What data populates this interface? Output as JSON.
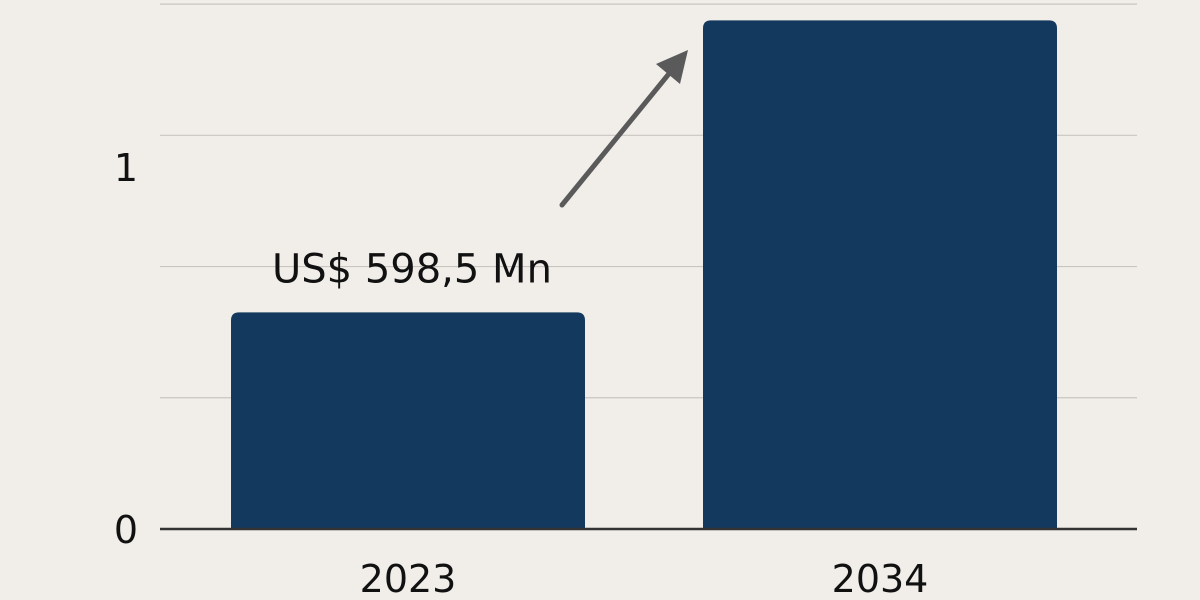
{
  "chart_data": {
    "type": "bar",
    "categories": [
      "2023",
      "2034"
    ],
    "values": [
      0.5985,
      1.405
    ],
    "ylim": [
      0,
      1.4
    ],
    "yticks": [
      {
        "value": 0,
        "label": "0"
      },
      {
        "value": 1,
        "label": "1"
      }
    ],
    "gridlines": [
      0.3625,
      0.725,
      1.0875,
      1.45
    ],
    "grid": true,
    "bar_color": "#133a5e",
    "arrow_color": "#5a5a5a",
    "annotation": {
      "text": "US$ 598,5 Mn",
      "for_category": "2023"
    },
    "title": "",
    "xlabel": "",
    "ylabel": ""
  }
}
